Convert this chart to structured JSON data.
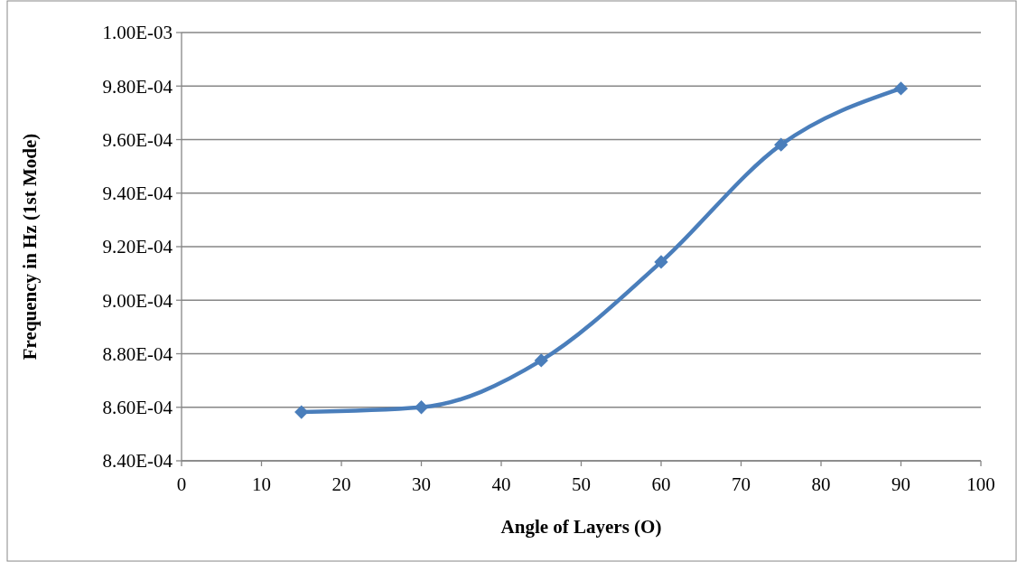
{
  "chart_data": {
    "type": "line",
    "xlabel": "Angle of Layers (O)",
    "ylabel": "Frequency in Hz (1st Mode)",
    "x": [
      15,
      30,
      45,
      60,
      75,
      90
    ],
    "series": [
      {
        "color": "#4a7ebb",
        "values": [
          0.0008582,
          0.00086,
          0.0008775,
          0.0009143,
          0.0009581,
          0.0009791
        ]
      }
    ],
    "xlim": [
      0,
      100
    ],
    "xticks": [
      0,
      10,
      20,
      30,
      40,
      50,
      60,
      70,
      80,
      90,
      100
    ],
    "ylim": [
      0.00084,
      0.001
    ],
    "yticks": [
      {
        "value": 0.00084,
        "label": "8.40E-04"
      },
      {
        "value": 0.00086,
        "label": "8.60E-04"
      },
      {
        "value": 0.00088,
        "label": "8.80E-04"
      },
      {
        "value": 0.0009,
        "label": "9.00E-04"
      },
      {
        "value": 0.00092,
        "label": "9.20E-04"
      },
      {
        "value": 0.00094,
        "label": "9.40E-04"
      },
      {
        "value": 0.00096,
        "label": "9.60E-04"
      },
      {
        "value": 0.00098,
        "label": "9.80E-04"
      },
      {
        "value": 0.001,
        "label": "1.00E-03"
      }
    ],
    "grid": "y",
    "marker": "diamond",
    "line_style": "solid"
  }
}
